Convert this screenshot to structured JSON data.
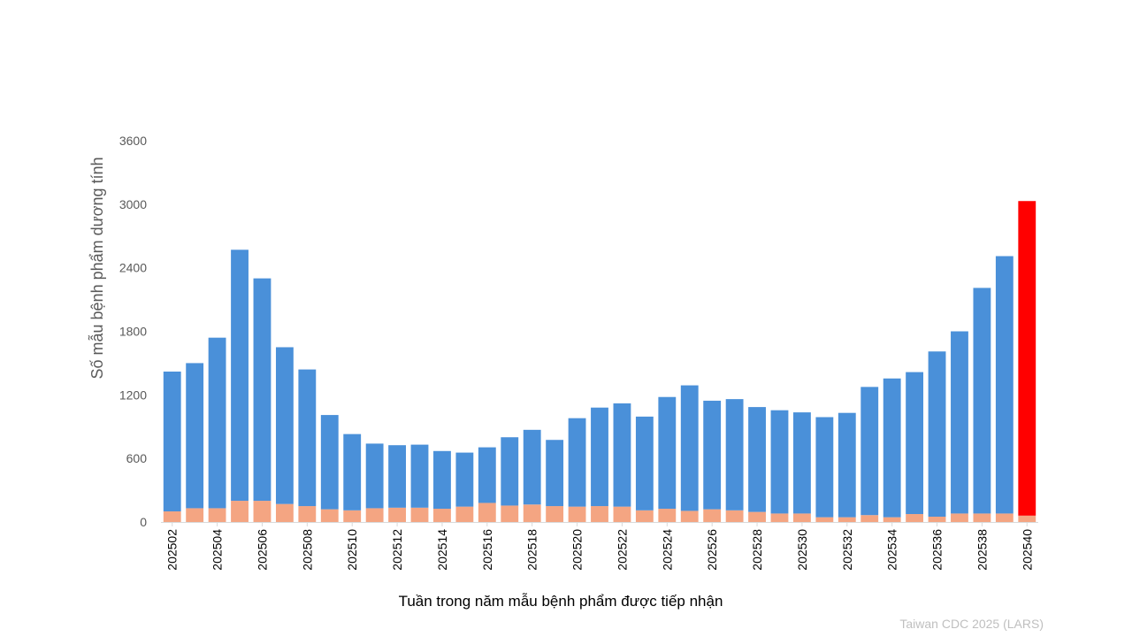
{
  "chart_data": {
    "type": "bar",
    "stacked": true,
    "title": "",
    "xlabel": "Tuần trong năm mẫu bệnh phẩm được tiếp nhận",
    "ylabel": "Số mẫu bệnh phẩm dương tính",
    "ylim": [
      0,
      3600
    ],
    "yticks": [
      0,
      600,
      1200,
      1800,
      2400,
      3000,
      3600
    ],
    "grid": false,
    "legend": "none",
    "categories": [
      "202502",
      "202503",
      "202504",
      "202505",
      "202506",
      "202507",
      "202508",
      "202509",
      "202510",
      "202511",
      "202512",
      "202513",
      "202514",
      "202515",
      "202516",
      "202517",
      "202518",
      "202519",
      "202520",
      "202521",
      "202522",
      "202523",
      "202524",
      "202525",
      "202526",
      "202527",
      "202528",
      "202529",
      "202530",
      "202531",
      "202532",
      "202533",
      "202534",
      "202535",
      "202536",
      "202537",
      "202538",
      "202539",
      "202540"
    ],
    "x_tick_labels": [
      "202502",
      "202504",
      "202506",
      "202508",
      "202510",
      "202512",
      "202514",
      "202516",
      "202518",
      "202520",
      "202522",
      "202524",
      "202526",
      "202528",
      "202530",
      "202532",
      "202534",
      "202536",
      "202538",
      "202540"
    ],
    "series": [
      {
        "color": "#f4a582",
        "values": [
          100,
          130,
          130,
          200,
          200,
          170,
          150,
          120,
          110,
          130,
          135,
          135,
          125,
          145,
          180,
          155,
          165,
          150,
          145,
          150,
          145,
          110,
          125,
          105,
          120,
          110,
          95,
          80,
          80,
          45,
          45,
          65,
          45,
          75,
          50,
          80,
          80,
          80,
          60
        ]
      },
      {
        "color": "#4a90d9",
        "values": [
          1320,
          1370,
          1610,
          2370,
          2100,
          1480,
          1290,
          890,
          720,
          610,
          590,
          595,
          545,
          510,
          525,
          645,
          705,
          625,
          835,
          930,
          975,
          885,
          1055,
          1185,
          1025,
          1050,
          990,
          975,
          955,
          945,
          985,
          1210,
          1310,
          1340,
          1560,
          1720,
          2130,
          2430,
          2970
        ]
      }
    ],
    "highlight": {
      "category": "202540",
      "color": "#ff0000"
    },
    "source": "Taiwan CDC 2025 (LARS)"
  }
}
